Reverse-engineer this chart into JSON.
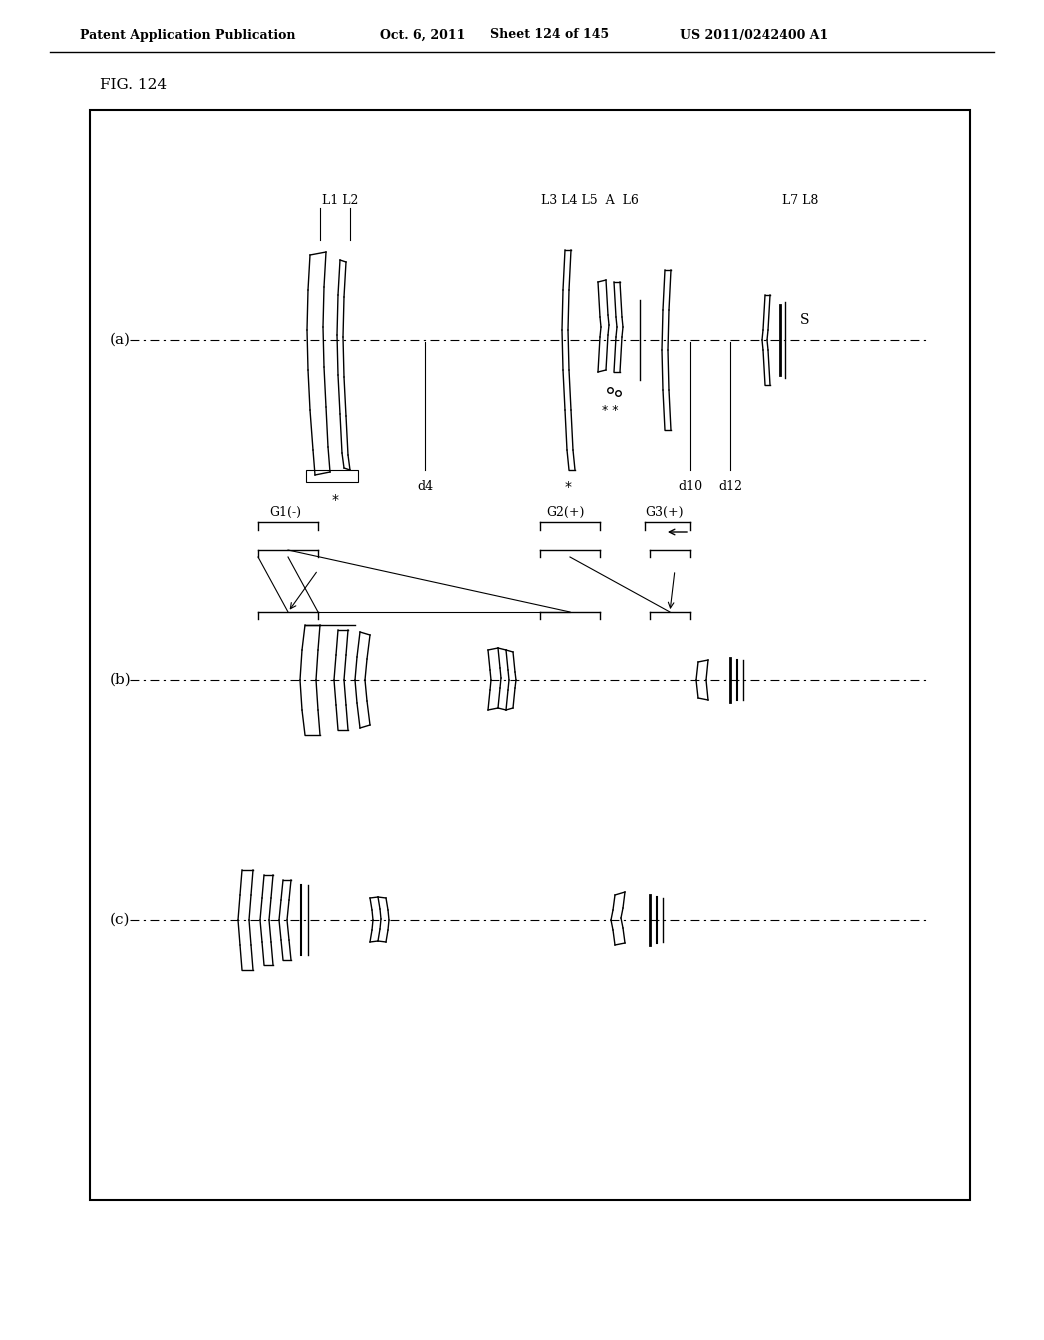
{
  "title": "FIG. 124",
  "header_left": "Patent Application Publication",
  "header_middle": "Oct. 6, 2011",
  "header_right_sheet": "Sheet 124 of 145",
  "header_right_patent": "US 2011/0242400 A1",
  "bg_color": "#ffffff",
  "text_color": "#000000",
  "line_color": "#000000",
  "lens_color": "#888888"
}
